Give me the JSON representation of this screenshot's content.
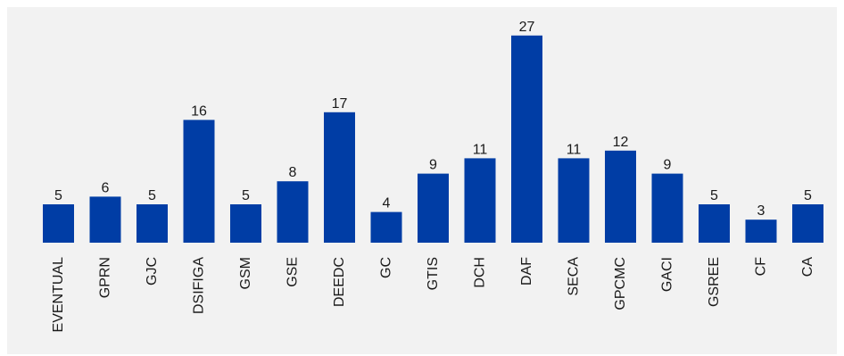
{
  "chart_data": {
    "type": "bar",
    "categories": [
      "EVENTUAL",
      "GPRN",
      "GJC",
      "DSIFIGA",
      "GSM",
      "GSE",
      "DEEDC",
      "GC",
      "GTIS",
      "DCH",
      "DAF",
      "SECA",
      "GPCMC",
      "GACI",
      "GSREE",
      "CF",
      "CA"
    ],
    "values": [
      5,
      6,
      5,
      16,
      5,
      8,
      17,
      4,
      9,
      11,
      27,
      11,
      12,
      9,
      5,
      3,
      5
    ],
    "title": "",
    "xlabel": "",
    "ylabel": "",
    "ylim": [
      0,
      27
    ],
    "grid": false,
    "data_labels": true,
    "bar_color": "#003da5",
    "background_color": "#f2f2f2"
  }
}
